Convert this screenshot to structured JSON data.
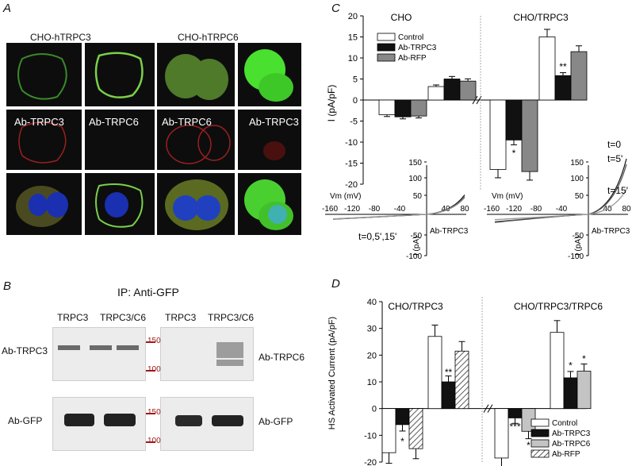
{
  "panels": {
    "a": "A",
    "b": "B",
    "c": "C",
    "d": "D"
  },
  "panelA": {
    "col1": "CHO-hTRPC3",
    "col2": "CHO-hTRPC6",
    "rowlabels": [
      "Ab-TRPC3",
      "Ab-TRPC6",
      "Ab-TRPC6",
      "Ab-TRPC3"
    ]
  },
  "panelB": {
    "title": "IP: Anti-GFP",
    "lanes": [
      "TRPC3",
      "TRPC3/C6",
      "TRPC3",
      "TRPC3/C6"
    ],
    "left_labels": [
      "Ab-TRPC3",
      "Ab-GFP"
    ],
    "right_labels": [
      "Ab-TRPC6",
      "Ab-GFP"
    ],
    "markers": [
      "150",
      "100",
      "150",
      "100"
    ]
  },
  "colors": {
    "control": "#ffffff",
    "ab_trpc3": "#111111",
    "ab_rfp": "#888888",
    "ab_trpc6": "#c4c4c4"
  },
  "chart_data": [
    {
      "type": "bar",
      "panel": "C",
      "ylabel": "I (pA/pF)",
      "ylim": [
        -20,
        20
      ],
      "yticks": [
        -20,
        -15,
        -10,
        -5,
        0,
        5,
        10,
        15,
        20
      ],
      "groups": [
        "CHO",
        "CHO/TRPC3"
      ],
      "series": [
        {
          "name": "Control",
          "inward": [
            -3.5,
            -16.5
          ],
          "outward": [
            3.2,
            15.0
          ]
        },
        {
          "name": "Ab-TRPC3",
          "inward": [
            -4.0,
            -9.5
          ],
          "outward": [
            5.0,
            5.8
          ]
        },
        {
          "name": "Ab-RFP",
          "inward": [
            -3.8,
            -17.0
          ],
          "outward": [
            4.5,
            11.5
          ]
        }
      ],
      "significance": [
        "**",
        "*"
      ],
      "inset": {
        "xlabel": "Vm (mV)",
        "xticks": [
          "-160",
          "-120",
          "-80",
          "-40",
          "40",
          "80"
        ],
        "yticks": [
          "150",
          "100",
          "50",
          "-50",
          "-100"
        ],
        "ylabel": "I (pA)",
        "trace_label": "Ab-TRPC3",
        "left_time_label": "t=0,5',15'",
        "right_time_labels": [
          "t=0",
          "t=5'",
          "t=15'"
        ]
      }
    },
    {
      "type": "bar",
      "panel": "D",
      "ylabel": "HS Activated Current (pA/pF)",
      "ylim": [
        -20,
        40
      ],
      "yticks": [
        -20,
        -10,
        0,
        10,
        20,
        30,
        40
      ],
      "groups": [
        "CHO/TRPC3",
        "CHO/TRPC3/TRPC6"
      ],
      "series": [
        {
          "name": "Control",
          "inward": [
            -16.5,
            -18.5
          ],
          "outward": [
            27.0,
            28.5
          ]
        },
        {
          "name": "Ab-TRPC3",
          "inward": [
            -6.0,
            -3.5
          ],
          "outward": [
            10.0,
            11.5
          ]
        },
        {
          "name": "Ab-TRPC6",
          "inward": [
            null,
            -8.5
          ],
          "outward": [
            null,
            14.0
          ]
        },
        {
          "name": "Ab-RFP",
          "inward": [
            -15.0,
            null
          ],
          "outward": [
            21.5,
            null
          ]
        }
      ],
      "significance": [
        "*",
        "**",
        "***",
        "*",
        "*",
        "*"
      ]
    }
  ]
}
